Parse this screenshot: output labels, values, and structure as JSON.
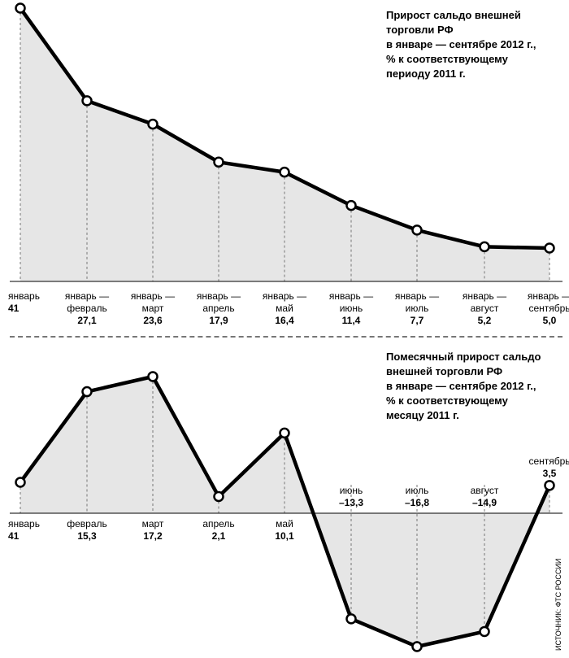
{
  "source": "ИСТОЧНИК: ФТС РОССИИ",
  "chart_data": [
    {
      "type": "area",
      "title": "Прирост сальдо внешней торговли РФ\nв январе — сентябре 2012 г.,\n% к соответствующему\nпериоду 2011 г.",
      "categories": [
        [
          "январь"
        ],
        [
          "январь —",
          "февраль"
        ],
        [
          "январь —",
          "март"
        ],
        [
          "январь —",
          "апрель"
        ],
        [
          "январь —",
          "май"
        ],
        [
          "январь —",
          "июнь"
        ],
        [
          "январь —",
          "июль"
        ],
        [
          "январь —",
          "август"
        ],
        [
          "январь —",
          "сентябрь"
        ]
      ],
      "values": [
        41,
        27.1,
        23.6,
        17.9,
        16.4,
        11.4,
        7.7,
        5.2,
        5.0
      ],
      "value_labels": [
        "41",
        "27,1",
        "23,6",
        "17,9",
        "16,4",
        "11,4",
        "7,7",
        "5,2",
        "5,0"
      ],
      "ylim": [
        0,
        41
      ]
    },
    {
      "type": "area",
      "title": "Помесячный прирост сальдо\nвнешней торговли РФ\nв январе — сентябре 2012 г.,\n% к соответствующему\nмесяцу 2011 г.",
      "categories": [
        "январь",
        "февраль",
        "март",
        "апрель",
        "май",
        "июнь",
        "июль",
        "август",
        "сентябрь"
      ],
      "values": [
        41,
        15.3,
        17.2,
        2.1,
        10.1,
        -13.3,
        -16.8,
        -14.9,
        3.5
      ],
      "value_labels": [
        "41",
        "15,3",
        "17,2",
        "2,1",
        "10,1",
        "–13,3",
        "–16,8",
        "–14,9",
        "3,5"
      ],
      "ylim": [
        -16.8,
        17.2
      ],
      "note": "первое значение (41) выходит за пределы шкалы"
    }
  ],
  "colors": {
    "line": "#000000",
    "fill": "#e6e6e6",
    "dash": "#777777",
    "marker_fill": "#ffffff"
  }
}
